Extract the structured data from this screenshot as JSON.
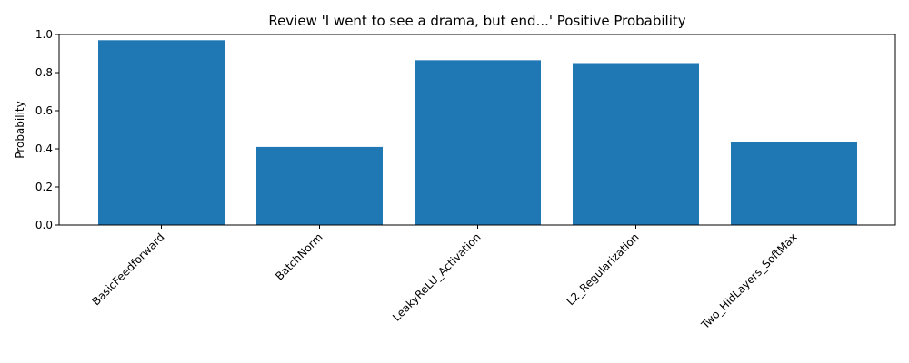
{
  "chart_data": {
    "type": "bar",
    "title": "Review 'I went to see a drama, but end...' Positive Probability",
    "xlabel": "",
    "ylabel": "Probability",
    "categories": [
      "BasicFeedforward",
      "BatchNorm",
      "LeakyReLU_Activation",
      "L2_Regularization",
      "Two_HidLayers_SoftMax"
    ],
    "values": [
      0.97,
      0.41,
      0.865,
      0.85,
      0.435
    ],
    "ylim": [
      0,
      1.0
    ],
    "yticks": [
      "0.0",
      "0.2",
      "0.4",
      "0.6",
      "0.8",
      "1.0"
    ],
    "grid": false,
    "bar_color": "#1f77b4"
  }
}
